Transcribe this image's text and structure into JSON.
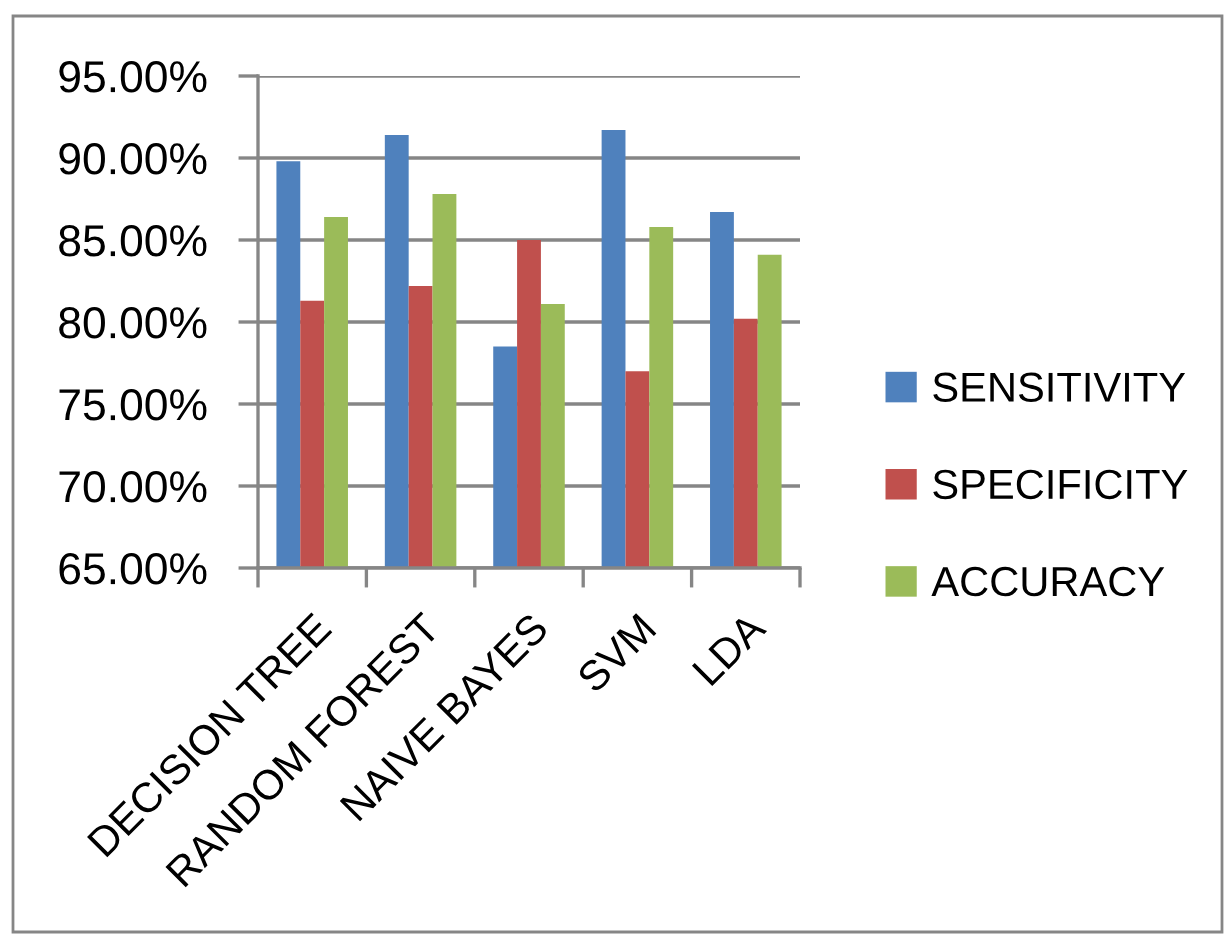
{
  "chart_data": {
    "type": "bar",
    "categories": [
      "DECISION TREE",
      "RANDOM FOREST",
      "NAIVE BAYES",
      "SVM",
      "LDA"
    ],
    "series": [
      {
        "name": "SENSITIVITY",
        "color": "#4f81bd",
        "values": [
          89.8,
          91.4,
          78.5,
          91.7,
          86.7
        ]
      },
      {
        "name": "SPECIFICITY",
        "color": "#c0504d",
        "values": [
          81.3,
          82.2,
          85.0,
          77.0,
          80.2
        ]
      },
      {
        "name": "ACCURACY",
        "color": "#9bbb59",
        "values": [
          86.4,
          87.8,
          81.1,
          85.8,
          84.1
        ]
      }
    ],
    "ylim": [
      65,
      95
    ],
    "yticks": [
      {
        "value": 65,
        "label": "65.00%"
      },
      {
        "value": 70,
        "label": "70.00%"
      },
      {
        "value": 75,
        "label": "75.00%"
      },
      {
        "value": 80,
        "label": "80.00%"
      },
      {
        "value": 85,
        "label": "85.00%"
      },
      {
        "value": 90,
        "label": "90.00%"
      },
      {
        "value": 95,
        "label": "95.00%"
      }
    ],
    "grid": "y",
    "legend": "right"
  }
}
